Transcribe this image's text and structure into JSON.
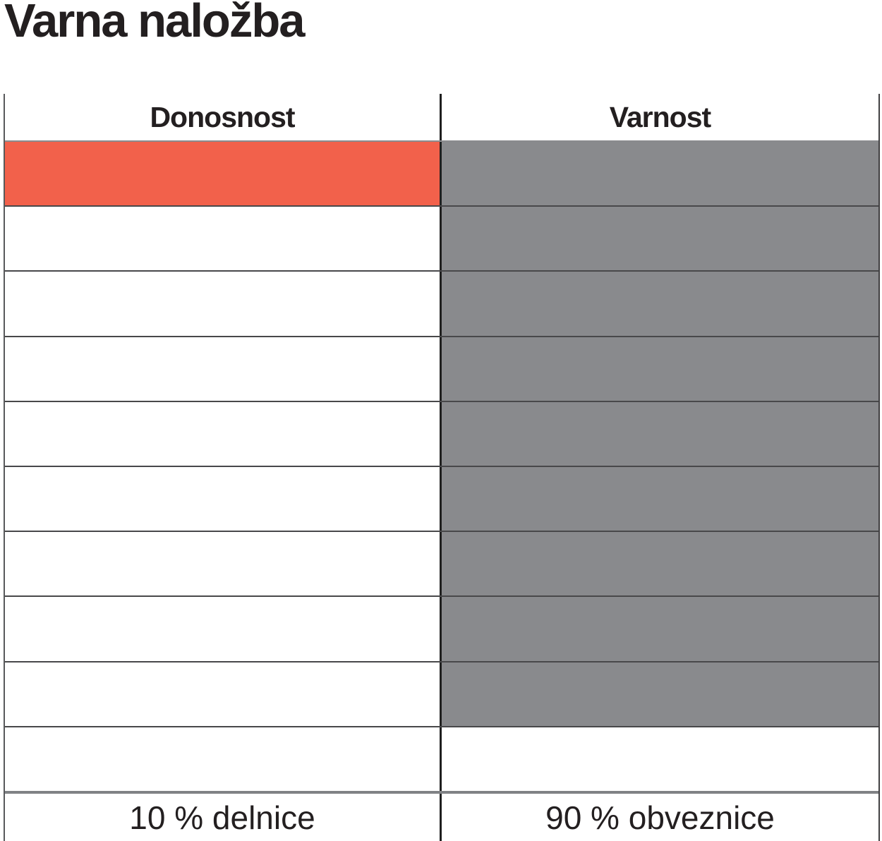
{
  "title": "Varna naložba",
  "table": {
    "headers": [
      "Donosnost",
      "Varnost"
    ],
    "footer_labels": [
      "10 % delnice",
      "90 % obveznice"
    ]
  },
  "colors": {
    "stocks_fill": "#f2614b",
    "bonds_fill": "#898a8d",
    "row_line": "#48484a",
    "column_divider": "#1f1f1f",
    "header_line": "#8a8b8e",
    "footer_line": "#808285",
    "text": "#231f20"
  },
  "chart_data": {
    "type": "table",
    "title": "Varna naložba",
    "columns": [
      "Donosnost",
      "Varnost"
    ],
    "total_rows": 10,
    "series": [
      {
        "name": "Donosnost",
        "label": "10 % delnice",
        "filled_rows": 1,
        "percent": 10,
        "fill_color": "#f2614b"
      },
      {
        "name": "Varnost",
        "label": "90 % obveznice",
        "filled_rows": 9,
        "percent": 90,
        "fill_color": "#898a8d"
      }
    ],
    "legend_position": "bottom",
    "grid": true
  }
}
